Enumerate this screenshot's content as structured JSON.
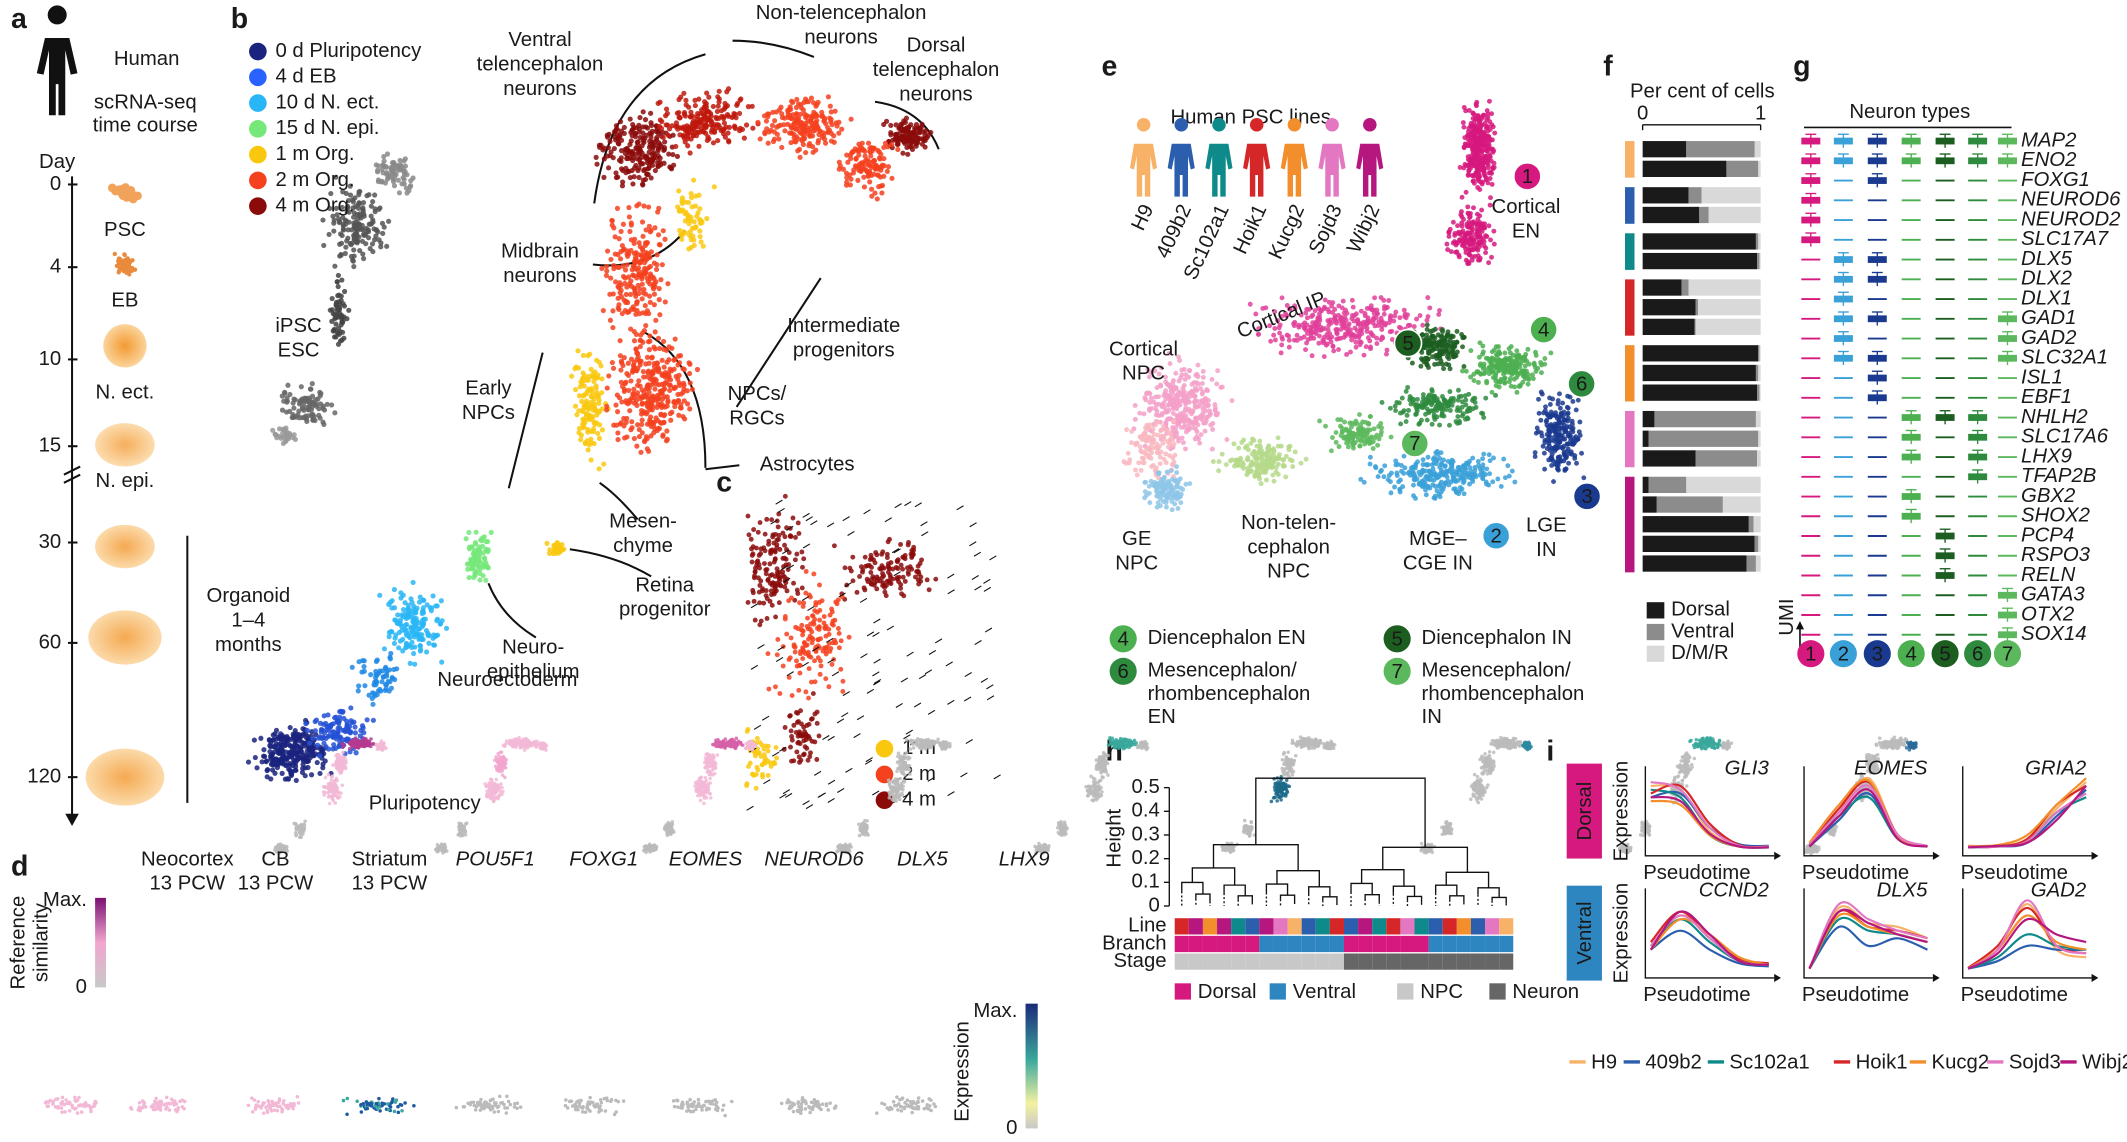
{
  "panel_labels": [
    "a",
    "b",
    "c",
    "d",
    "e",
    "f",
    "g",
    "h",
    "i"
  ],
  "a": {
    "title": "Human",
    "subtitle_lines": [
      "scRNA-seq",
      "time course"
    ],
    "axis_title": "Day",
    "days": [
      0,
      4,
      10,
      15,
      30,
      60,
      120
    ],
    "stages": [
      "PSC",
      "EB",
      "N. ect.",
      "N. epi."
    ],
    "organoid_lines": [
      "Organoid",
      "1–4",
      "months"
    ]
  },
  "b": {
    "legend": [
      {
        "name": "0 d Pluripotency",
        "color": "#1a237e"
      },
      {
        "name": "4 d EB",
        "color": "#2962ff"
      },
      {
        "name": "10 d N. ect.",
        "color": "#29b6f6"
      },
      {
        "name": "15 d N. epi.",
        "color": "#76e87a"
      },
      {
        "name": "1 m Org.",
        "color": "#f9c80e"
      },
      {
        "name": "2 m Org.",
        "color": "#f4411e"
      },
      {
        "name": "4 m Org.",
        "color": "#8b0a0a"
      }
    ],
    "annotations": [
      {
        "lines": [
          "Ventral",
          "telencephalon",
          "neurons"
        ]
      },
      {
        "lines": [
          "Non-telencephalon",
          "neurons"
        ]
      },
      {
        "lines": [
          "Dorsal",
          "telencephalon",
          "neurons"
        ]
      },
      {
        "lines": [
          "Midbrain",
          "neurons"
        ]
      },
      {
        "lines": [
          "Intermediate",
          "progenitors"
        ]
      },
      {
        "lines": [
          "Early",
          "NPCs"
        ]
      },
      {
        "lines": [
          "NPCs/",
          "RGCs"
        ]
      },
      {
        "lines": [
          "Astrocytes"
        ]
      },
      {
        "lines": [
          "Mesen-",
          "chyme"
        ]
      },
      {
        "lines": [
          "Retina",
          "progenitor"
        ]
      },
      {
        "lines": [
          "Neuro-",
          "epithelium"
        ]
      },
      {
        "lines": [
          "Neuroectoderm"
        ]
      },
      {
        "lines": [
          "Pluripotency"
        ]
      },
      {
        "lines": [
          "iPSC"
        ],
        "color": "#999999"
      },
      {
        "lines": [
          "ESC"
        ],
        "color": "#444444"
      }
    ]
  },
  "c": {
    "legend": [
      {
        "name": "1 m",
        "color": "#f9c80e"
      },
      {
        "name": "2 m",
        "color": "#f4411e"
      },
      {
        "name": "4 m",
        "color": "#8b0a0a"
      }
    ]
  },
  "d": {
    "references": [
      {
        "name": "Neocortex",
        "sub": "13 PCW"
      },
      {
        "name": "CB",
        "sub": "13 PCW"
      },
      {
        "name": "Striatum",
        "sub": "13 PCW"
      }
    ],
    "genes": [
      "POU5F1",
      "FOXG1",
      "EOMES",
      "NEUROD6",
      "DLX5",
      "LHX9"
    ],
    "similarity_bar": {
      "title_lines": [
        "Reference",
        "similarity"
      ],
      "max": "Max.",
      "min": 0
    },
    "expression_bar": {
      "title": "Expression",
      "max": "Max.",
      "min": 0
    }
  },
  "e": {
    "title": "Human PSC lines",
    "lines": [
      {
        "name": "H9",
        "color": "#f7b267"
      },
      {
        "name": "409b2",
        "color": "#2b5fad"
      },
      {
        "name": "Sc102a1",
        "color": "#0e8a8a"
      },
      {
        "name": "Hoik1",
        "color": "#d62728"
      },
      {
        "name": "Kucg2",
        "color": "#f28e2b"
      },
      {
        "name": "Sojd3",
        "color": "#e377c2"
      },
      {
        "name": "Wibj2",
        "color": "#b5177f"
      }
    ],
    "clusters": [
      {
        "number": 1,
        "color": "#d6197e",
        "label": [
          "Cortical",
          "EN"
        ]
      },
      {
        "number": 2,
        "color": "#3aa0d8",
        "label": [
          "MGE–",
          "CGE IN"
        ]
      },
      {
        "number": 3,
        "color": "#1a3a8f",
        "label": [
          "LGE",
          "IN"
        ]
      },
      {
        "number": 4,
        "color": "#4caf50",
        "label": [
          "Diencephalon EN"
        ]
      },
      {
        "number": 5,
        "color": "#1b5e20",
        "label": [
          "Diencephalon IN"
        ]
      },
      {
        "number": 6,
        "color": "#2e8b3e",
        "label": [
          "Mesencephalon/",
          "rhombencephalon",
          "EN"
        ]
      },
      {
        "number": 7,
        "color": "#5cb85c",
        "label": [
          "Mesencephalon/",
          "rhombencephalon",
          "IN"
        ]
      }
    ],
    "regions": [
      {
        "lines": [
          "Cortical IP"
        ],
        "color": "#e0409a"
      },
      {
        "lines": [
          "Cortical",
          "NPC"
        ],
        "color": "#f3a0c8"
      },
      {
        "lines": [
          "GE",
          "NPC"
        ],
        "color": "#8ec5e8"
      },
      {
        "lines": [
          "Non-telen-",
          "cephalon",
          "NPC"
        ],
        "color": "#a9d67e"
      }
    ]
  },
  "f": {
    "title": "Per cent of cells",
    "xlim": [
      0,
      1
    ],
    "xticks": [
      0,
      1
    ],
    "line_index": [
      0,
      0,
      1,
      1,
      2,
      2,
      3,
      3,
      3,
      4,
      4,
      4,
      5,
      5,
      5,
      6,
      6,
      6,
      6,
      6
    ],
    "series": [
      {
        "name": "Dorsal",
        "color": "#1a1a1a",
        "values": [
          0.37,
          0.71,
          0.39,
          0.48,
          0.96,
          0.97,
          0.33,
          0.45,
          0.44,
          0.98,
          0.96,
          0.97,
          0.1,
          0.05,
          0.45,
          0.05,
          0.12,
          0.9,
          0.95,
          0.88
        ]
      },
      {
        "name": "Ventral",
        "color": "#8c8c8c",
        "values": [
          0.58,
          0.27,
          0.11,
          0.08,
          0.02,
          0.02,
          0.06,
          0.02,
          0.01,
          0.01,
          0.02,
          0.02,
          0.86,
          0.93,
          0.52,
          0.32,
          0.56,
          0.04,
          0.03,
          0.08
        ]
      },
      {
        "name": "D/M/R",
        "color": "#d9d9d9",
        "values": [
          0.05,
          0.02,
          0.5,
          0.44,
          0.02,
          0.01,
          0.61,
          0.53,
          0.55,
          0.01,
          0.02,
          0.01,
          0.04,
          0.02,
          0.03,
          0.63,
          0.32,
          0.06,
          0.02,
          0.04
        ]
      }
    ]
  },
  "g": {
    "title": "Neuron types",
    "genes": [
      "MAP2",
      "ENO2",
      "FOXG1",
      "NEUROD6",
      "NEUROD2",
      "SLC17A7",
      "DLX5",
      "DLX2",
      "DLX1",
      "GAD1",
      "GAD2",
      "SLC32A1",
      "ISL1",
      "EBF1",
      "NHLH2",
      "SLC17A6",
      "LHX9",
      "TFAP2B",
      "GBX2",
      "SHOX2",
      "PCP4",
      "RSPO3",
      "RELN",
      "GATA3",
      "OTX2",
      "SOX14"
    ],
    "expressed": [
      [
        0,
        1,
        2,
        3,
        4,
        5
      ],
      [
        0,
        1,
        6,
        7,
        8,
        9,
        10,
        11
      ],
      [
        0,
        1,
        2,
        6,
        7,
        9,
        11,
        12,
        13
      ],
      [
        0,
        1,
        14,
        15,
        16,
        18,
        19
      ],
      [
        0,
        1,
        14,
        20,
        21,
        22
      ],
      [
        0,
        1,
        14,
        15,
        16,
        17
      ],
      [
        0,
        1,
        9,
        10,
        11,
        23,
        24,
        25
      ]
    ],
    "umi_label": "UMI"
  },
  "h": {
    "axis_title": "Height",
    "ylim": [
      0,
      0.55
    ],
    "yticks": [
      0,
      0.1,
      0.2,
      0.3,
      0.4,
      0.5
    ],
    "row_labels": [
      "Line",
      "Branch",
      "Stage"
    ],
    "legend": [
      {
        "name": "Dorsal",
        "color": "#d6197e"
      },
      {
        "name": "Ventral",
        "color": "#2e86c1"
      },
      {
        "name": "NPC",
        "color": "#c8c8c8"
      },
      {
        "name": "Neuron",
        "color": "#666666"
      }
    ],
    "line_index": [
      3,
      6,
      4,
      6,
      2,
      1,
      6,
      5,
      0,
      1,
      2,
      3,
      1,
      6,
      2,
      3,
      5,
      2,
      1,
      3,
      4,
      1,
      5,
      0
    ],
    "branch": [
      0,
      0,
      0,
      0,
      0,
      0,
      1,
      1,
      1,
      1,
      1,
      1,
      0,
      0,
      0,
      0,
      0,
      0,
      1,
      1,
      1,
      1,
      1,
      1
    ],
    "stage": [
      2,
      2,
      2,
      2,
      2,
      2,
      2,
      2,
      2,
      2,
      2,
      2,
      3,
      3,
      3,
      3,
      3,
      3,
      3,
      3,
      3,
      3,
      3,
      3
    ]
  },
  "i": {
    "groups": [
      {
        "name": "Dorsal",
        "color": "#d6197e",
        "genes": [
          "GLI3",
          "EOMES",
          "GRIA2"
        ]
      },
      {
        "name": "Ventral",
        "color": "#2e86c1",
        "genes": [
          "CCND2",
          "DLX5",
          "GAD2"
        ]
      }
    ],
    "x_label": "Pseudotime",
    "y_label": "Expression",
    "curves": [
      [
        [
          0.85,
          0.8,
          0.25,
          0.06,
          0.05
        ],
        [
          0.7,
          0.75,
          0.3,
          0.08,
          0.06
        ],
        [
          0.8,
          0.7,
          0.2,
          0.05,
          0.04
        ],
        [
          0.75,
          0.85,
          0.35,
          0.07,
          0.05
        ],
        [
          0.65,
          0.6,
          0.2,
          0.05,
          0.05
        ],
        [
          0.9,
          0.8,
          0.3,
          0.06,
          0.05
        ],
        [
          0.7,
          0.65,
          0.22,
          0.05,
          0.04
        ]
      ],
      [
        [
          0.1,
          0.5,
          0.95,
          0.2,
          0.05
        ],
        [
          0.05,
          0.4,
          0.75,
          0.15,
          0.05
        ],
        [
          0.08,
          0.45,
          0.7,
          0.15,
          0.05
        ],
        [
          0.06,
          0.55,
          0.9,
          0.2,
          0.05
        ],
        [
          0.1,
          0.6,
          0.92,
          0.18,
          0.05
        ],
        [
          0.07,
          0.5,
          0.85,
          0.2,
          0.06
        ],
        [
          0.05,
          0.45,
          0.8,
          0.15,
          0.05
        ]
      ],
      [
        [
          0.05,
          0.06,
          0.15,
          0.55,
          0.9
        ],
        [
          0.04,
          0.05,
          0.1,
          0.45,
          0.8
        ],
        [
          0.05,
          0.06,
          0.12,
          0.5,
          0.7
        ],
        [
          0.05,
          0.05,
          0.15,
          0.6,
          0.85
        ],
        [
          0.06,
          0.07,
          0.2,
          0.6,
          0.95
        ],
        [
          0.05,
          0.05,
          0.12,
          0.5,
          0.75
        ],
        [
          0.04,
          0.06,
          0.1,
          0.4,
          0.85
        ]
      ],
      [
        [
          0.35,
          0.75,
          0.5,
          0.15,
          0.1
        ],
        [
          0.3,
          0.55,
          0.3,
          0.12,
          0.08
        ],
        [
          0.35,
          0.7,
          0.4,
          0.15,
          0.1
        ],
        [
          0.4,
          0.8,
          0.45,
          0.18,
          0.12
        ],
        [
          0.3,
          0.7,
          0.5,
          0.2,
          0.1
        ],
        [
          0.35,
          0.75,
          0.45,
          0.15,
          0.1
        ],
        [
          0.3,
          0.8,
          0.5,
          0.15,
          0.1
        ]
      ],
      [
        [
          0.05,
          0.85,
          0.65,
          0.6,
          0.45
        ],
        [
          0.05,
          0.6,
          0.35,
          0.45,
          0.3
        ],
        [
          0.05,
          0.7,
          0.55,
          0.5,
          0.4
        ],
        [
          0.06,
          0.8,
          0.6,
          0.55,
          0.45
        ],
        [
          0.05,
          0.75,
          0.6,
          0.5,
          0.4
        ],
        [
          0.05,
          0.9,
          0.7,
          0.55,
          0.45
        ],
        [
          0.05,
          0.8,
          0.65,
          0.5,
          0.4
        ]
      ],
      [
        [
          0.05,
          0.3,
          0.9,
          0.3,
          0.2
        ],
        [
          0.05,
          0.15,
          0.35,
          0.3,
          0.3
        ],
        [
          0.05,
          0.2,
          0.5,
          0.35,
          0.3
        ],
        [
          0.06,
          0.35,
          0.85,
          0.35,
          0.25
        ],
        [
          0.05,
          0.3,
          0.75,
          0.4,
          0.3
        ],
        [
          0.05,
          0.3,
          0.95,
          0.35,
          0.25
        ],
        [
          0.05,
          0.25,
          0.7,
          0.5,
          0.4
        ]
      ]
    ]
  }
}
